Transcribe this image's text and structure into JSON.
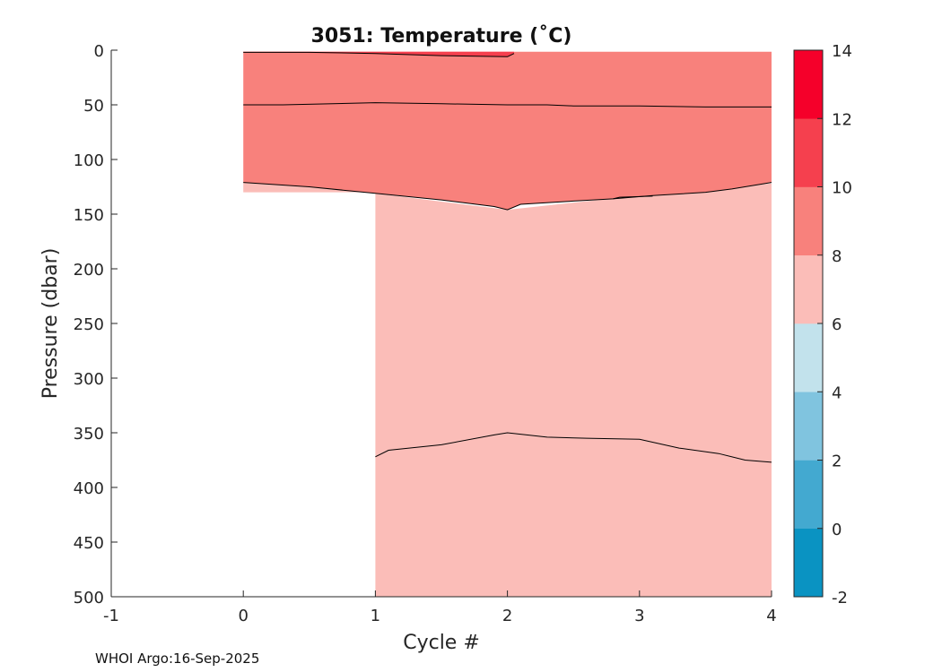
{
  "chart_data": {
    "type": "filled-contour",
    "title": "3051:  Temperature (˚C)",
    "xlabel": "Cycle #",
    "ylabel": "Pressure (dbar)",
    "xlim": [
      -1,
      4
    ],
    "ylim": [
      0,
      500
    ],
    "y_reversed": true,
    "x_ticks": [
      "-1",
      "0",
      "1",
      "2",
      "3",
      "4"
    ],
    "x_tick_values": [
      -1,
      0,
      1,
      2,
      3,
      4
    ],
    "y_ticks": [
      "0",
      "50",
      "100",
      "150",
      "200",
      "250",
      "300",
      "350",
      "400",
      "450",
      "500"
    ],
    "y_tick_values": [
      0,
      50,
      100,
      150,
      200,
      250,
      300,
      350,
      400,
      450,
      500
    ],
    "colorbar": {
      "levels": [
        -2,
        0,
        2,
        4,
        6,
        8,
        10,
        12,
        14
      ],
      "tick_labels": [
        "-2",
        "0",
        "2",
        "4",
        "6",
        "8",
        "10",
        "12",
        "14"
      ],
      "colors": [
        "#0a93c2",
        "#43a9d0",
        "#80c4df",
        "#c2e2ec",
        "#fbbdb8",
        "#f8817c",
        "#f5404e",
        "#f5002a"
      ]
    },
    "contour_lines": [
      {
        "level": 10,
        "points": [
          [
            0,
            2
          ],
          [
            0.5,
            2
          ],
          [
            1,
            3
          ],
          [
            1.5,
            5
          ],
          [
            2,
            6
          ],
          [
            2.05,
            3
          ]
        ]
      },
      {
        "level": 9,
        "points": [
          [
            0,
            50
          ],
          [
            0.3,
            50
          ],
          [
            1,
            48
          ],
          [
            1.5,
            49
          ],
          [
            2,
            50
          ],
          [
            2.3,
            50
          ],
          [
            2.5,
            51
          ],
          [
            3,
            51
          ],
          [
            3.5,
            52
          ],
          [
            4,
            52
          ]
        ]
      },
      {
        "level": 8,
        "points": [
          [
            0,
            121
          ],
          [
            0.5,
            125
          ],
          [
            1,
            131
          ],
          [
            1.5,
            137
          ],
          [
            1.9,
            143
          ],
          [
            2,
            146
          ],
          [
            2.1,
            141
          ],
          [
            2.5,
            138
          ],
          [
            2.8,
            136
          ],
          [
            3.1,
            133
          ],
          [
            3.5,
            130
          ],
          [
            3.7,
            127
          ],
          [
            4,
            121
          ]
        ]
      },
      {
        "level": 7,
        "points": [
          [
            1,
            372
          ],
          [
            1.1,
            366
          ],
          [
            1.5,
            361
          ],
          [
            1.9,
            352
          ],
          [
            2,
            350
          ],
          [
            2.3,
            354
          ],
          [
            2.6,
            355
          ],
          [
            3,
            356
          ],
          [
            3.3,
            364
          ],
          [
            3.6,
            369
          ],
          [
            3.8,
            375
          ],
          [
            4,
            377
          ]
        ]
      }
    ],
    "regions": [
      {
        "label": "8 to 10",
        "color": "#f8817c",
        "x_range": [
          0,
          4
        ],
        "pressure_bottom_profile": [
          [
            0,
            130
          ],
          [
            1,
            131
          ],
          [
            2,
            146
          ],
          [
            3,
            133
          ],
          [
            4,
            122
          ]
        ]
      },
      {
        "label": "6 to 8",
        "color": "#fbbdb8",
        "x_range": [
          1,
          4
        ],
        "below": "8 to 10 region",
        "down_to": 500
      },
      {
        "label": "6 to 8 (cycle 0 sliver)",
        "color": "#fbbdb8",
        "x_range": [
          0,
          1
        ],
        "pressure_range": [
          121,
          130
        ]
      },
      {
        "label": "10 to 12",
        "color": "#f5404e",
        "x_range": [
          0,
          2.05
        ],
        "pressure_range": [
          2,
          5
        ]
      }
    ],
    "data_coverage": {
      "cycle_0_max_pressure": 130,
      "cycles_1_to_4_max_pressure": 500
    }
  },
  "footer": {
    "text": "WHOI Argo:16-Sep-2025"
  }
}
